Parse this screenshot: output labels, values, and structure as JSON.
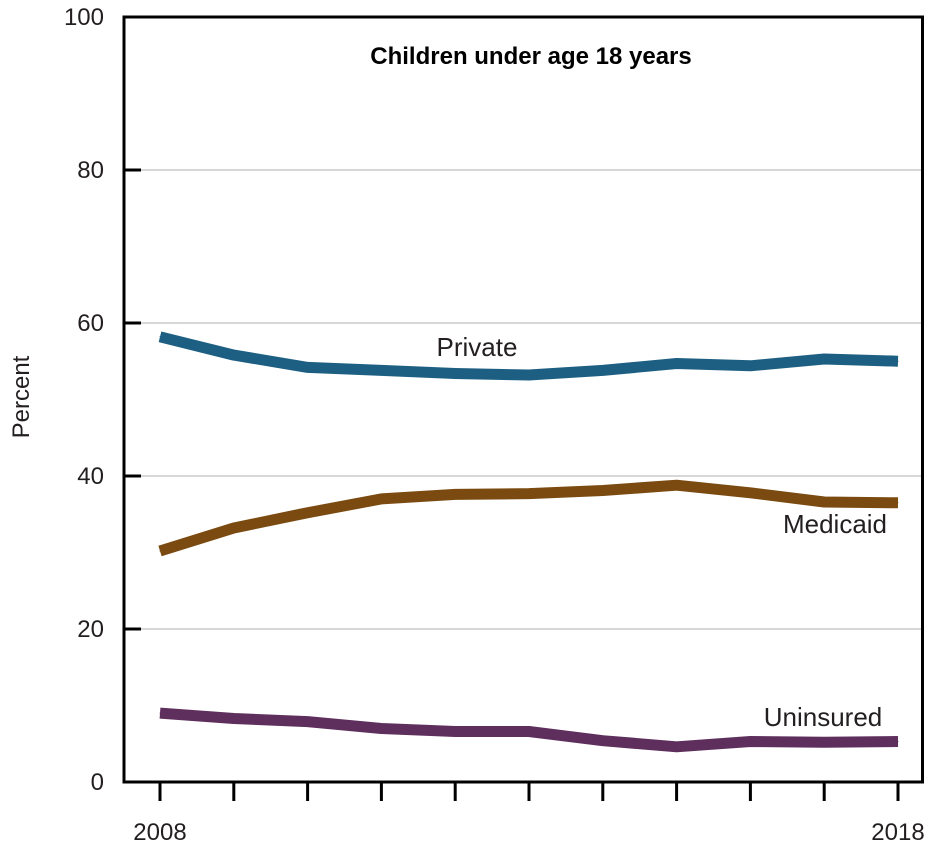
{
  "chart_data": {
    "type": "line",
    "title": "Children under age 18 years",
    "xlabel": "",
    "ylabel": "Percent",
    "x": [
      2008,
      2009,
      2010,
      2011,
      2012,
      2013,
      2014,
      2015,
      2016,
      2017,
      2018
    ],
    "x_tick_labels": [
      "2008",
      "",
      "",
      "",
      "",
      "",
      "",
      "",
      "",
      "",
      "2018"
    ],
    "xlim": [
      2008,
      2018
    ],
    "ylim": [
      0,
      100
    ],
    "y_ticks": [
      0,
      20,
      40,
      60,
      80,
      100
    ],
    "grid": true,
    "series": [
      {
        "name": "Private",
        "color": "#1d5f82",
        "values": [
          58.2,
          55.8,
          54.2,
          53.8,
          53.4,
          53.2,
          53.8,
          54.7,
          54.4,
          55.3,
          55.0
        ]
      },
      {
        "name": "Medicaid",
        "color": "#7a4a10",
        "values": [
          30.2,
          33.2,
          35.2,
          37.0,
          37.6,
          37.7,
          38.1,
          38.8,
          37.8,
          36.6,
          36.5
        ]
      },
      {
        "name": "Uninsured",
        "color": "#5e2e5c",
        "values": [
          9.0,
          8.3,
          7.9,
          7.0,
          6.6,
          6.6,
          5.4,
          4.6,
          5.3,
          5.2,
          5.3
        ]
      }
    ]
  }
}
